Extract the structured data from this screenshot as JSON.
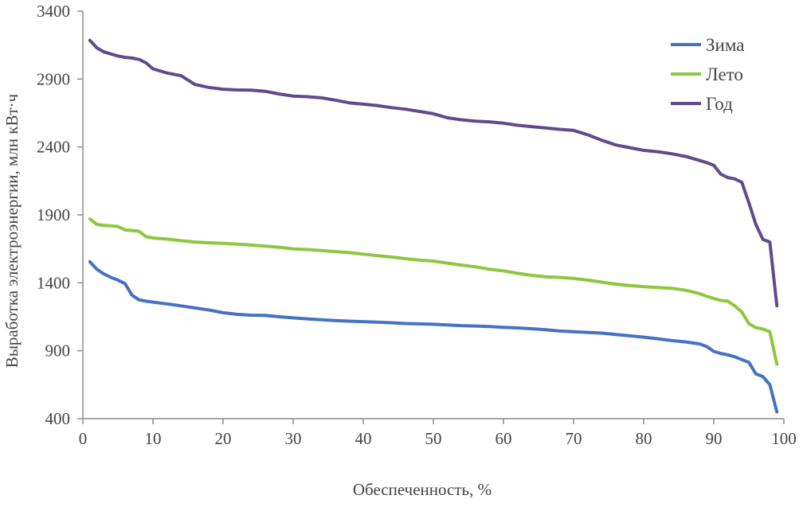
{
  "colors": {
    "background": "#ffffff",
    "axis": "#8c8c8c",
    "text": "#444444"
  },
  "chart_data": {
    "type": "line",
    "title": "",
    "xlabel": "Обеспеченность, %",
    "ylabel": "Выработка электроэнергии, млн кВт·ч",
    "xlim": [
      0,
      100
    ],
    "ylim": [
      400,
      3400
    ],
    "xticks": [
      0,
      10,
      20,
      30,
      40,
      50,
      60,
      70,
      80,
      90,
      100
    ],
    "yticks": [
      400,
      900,
      1400,
      1900,
      2400,
      2900,
      3400
    ],
    "grid": false,
    "legend": "top-right",
    "series": [
      {
        "name": "Зима",
        "color": "#4472c4",
        "points": [
          [
            1,
            1555
          ],
          [
            2,
            1500
          ],
          [
            3,
            1465
          ],
          [
            4,
            1440
          ],
          [
            5,
            1420
          ],
          [
            6,
            1395
          ],
          [
            7,
            1310
          ],
          [
            8,
            1275
          ],
          [
            9,
            1265
          ],
          [
            10,
            1258
          ],
          [
            12,
            1245
          ],
          [
            14,
            1230
          ],
          [
            16,
            1215
          ],
          [
            18,
            1200
          ],
          [
            20,
            1180
          ],
          [
            22,
            1168
          ],
          [
            24,
            1162
          ],
          [
            26,
            1160
          ],
          [
            28,
            1150
          ],
          [
            30,
            1142
          ],
          [
            32,
            1135
          ],
          [
            34,
            1128
          ],
          [
            36,
            1122
          ],
          [
            38,
            1118
          ],
          [
            40,
            1114
          ],
          [
            42,
            1110
          ],
          [
            44,
            1106
          ],
          [
            46,
            1100
          ],
          [
            48,
            1098
          ],
          [
            50,
            1095
          ],
          [
            52,
            1090
          ],
          [
            54,
            1085
          ],
          [
            56,
            1082
          ],
          [
            58,
            1078
          ],
          [
            60,
            1072
          ],
          [
            62,
            1068
          ],
          [
            64,
            1062
          ],
          [
            66,
            1055
          ],
          [
            68,
            1045
          ],
          [
            70,
            1040
          ],
          [
            72,
            1035
          ],
          [
            74,
            1030
          ],
          [
            76,
            1020
          ],
          [
            78,
            1010
          ],
          [
            80,
            1000
          ],
          [
            82,
            988
          ],
          [
            84,
            975
          ],
          [
            86,
            965
          ],
          [
            88,
            950
          ],
          [
            89,
            930
          ],
          [
            90,
            895
          ],
          [
            91,
            880
          ],
          [
            92,
            870
          ],
          [
            93,
            855
          ],
          [
            94,
            835
          ],
          [
            95,
            815
          ],
          [
            96,
            730
          ],
          [
            97,
            710
          ],
          [
            98,
            650
          ],
          [
            99,
            450
          ]
        ]
      },
      {
        "name": "Лето",
        "color": "#8dc63f",
        "points": [
          [
            1,
            1870
          ],
          [
            2,
            1830
          ],
          [
            3,
            1822
          ],
          [
            4,
            1820
          ],
          [
            5,
            1815
          ],
          [
            6,
            1790
          ],
          [
            7,
            1785
          ],
          [
            8,
            1780
          ],
          [
            9,
            1740
          ],
          [
            10,
            1730
          ],
          [
            12,
            1722
          ],
          [
            14,
            1710
          ],
          [
            16,
            1700
          ],
          [
            18,
            1695
          ],
          [
            20,
            1690
          ],
          [
            22,
            1685
          ],
          [
            24,
            1678
          ],
          [
            26,
            1670
          ],
          [
            28,
            1662
          ],
          [
            30,
            1650
          ],
          [
            32,
            1645
          ],
          [
            34,
            1638
          ],
          [
            36,
            1630
          ],
          [
            38,
            1622
          ],
          [
            40,
            1612
          ],
          [
            42,
            1600
          ],
          [
            44,
            1590
          ],
          [
            46,
            1578
          ],
          [
            48,
            1568
          ],
          [
            50,
            1560
          ],
          [
            52,
            1545
          ],
          [
            54,
            1530
          ],
          [
            56,
            1518
          ],
          [
            58,
            1500
          ],
          [
            60,
            1488
          ],
          [
            62,
            1470
          ],
          [
            64,
            1455
          ],
          [
            66,
            1445
          ],
          [
            68,
            1440
          ],
          [
            70,
            1432
          ],
          [
            72,
            1420
          ],
          [
            74,
            1405
          ],
          [
            76,
            1390
          ],
          [
            78,
            1380
          ],
          [
            80,
            1372
          ],
          [
            82,
            1365
          ],
          [
            84,
            1360
          ],
          [
            86,
            1345
          ],
          [
            88,
            1320
          ],
          [
            89,
            1300
          ],
          [
            90,
            1285
          ],
          [
            91,
            1270
          ],
          [
            92,
            1265
          ],
          [
            93,
            1230
          ],
          [
            94,
            1185
          ],
          [
            95,
            1100
          ],
          [
            96,
            1070
          ],
          [
            97,
            1060
          ],
          [
            98,
            1040
          ],
          [
            99,
            800
          ]
        ]
      },
      {
        "name": "Год",
        "color": "#5f4b8b",
        "points": [
          [
            1,
            3185
          ],
          [
            2,
            3130
          ],
          [
            3,
            3100
          ],
          [
            4,
            3085
          ],
          [
            5,
            3070
          ],
          [
            6,
            3060
          ],
          [
            7,
            3055
          ],
          [
            8,
            3045
          ],
          [
            9,
            3020
          ],
          [
            10,
            2975
          ],
          [
            12,
            2945
          ],
          [
            14,
            2925
          ],
          [
            16,
            2860
          ],
          [
            18,
            2838
          ],
          [
            20,
            2825
          ],
          [
            22,
            2820
          ],
          [
            24,
            2818
          ],
          [
            26,
            2810
          ],
          [
            28,
            2790
          ],
          [
            30,
            2775
          ],
          [
            32,
            2770
          ],
          [
            34,
            2762
          ],
          [
            36,
            2745
          ],
          [
            38,
            2725
          ],
          [
            40,
            2715
          ],
          [
            42,
            2705
          ],
          [
            44,
            2690
          ],
          [
            46,
            2678
          ],
          [
            48,
            2662
          ],
          [
            50,
            2645
          ],
          [
            52,
            2615
          ],
          [
            54,
            2600
          ],
          [
            56,
            2590
          ],
          [
            58,
            2585
          ],
          [
            60,
            2575
          ],
          [
            62,
            2560
          ],
          [
            64,
            2550
          ],
          [
            66,
            2540
          ],
          [
            68,
            2530
          ],
          [
            70,
            2522
          ],
          [
            72,
            2490
          ],
          [
            74,
            2450
          ],
          [
            76,
            2415
          ],
          [
            78,
            2395
          ],
          [
            80,
            2375
          ],
          [
            82,
            2365
          ],
          [
            84,
            2350
          ],
          [
            86,
            2330
          ],
          [
            88,
            2300
          ],
          [
            89,
            2285
          ],
          [
            90,
            2265
          ],
          [
            91,
            2200
          ],
          [
            92,
            2175
          ],
          [
            93,
            2165
          ],
          [
            94,
            2140
          ],
          [
            95,
            1990
          ],
          [
            96,
            1830
          ],
          [
            97,
            1720
          ],
          [
            98,
            1700
          ],
          [
            99,
            1230
          ]
        ]
      }
    ]
  }
}
